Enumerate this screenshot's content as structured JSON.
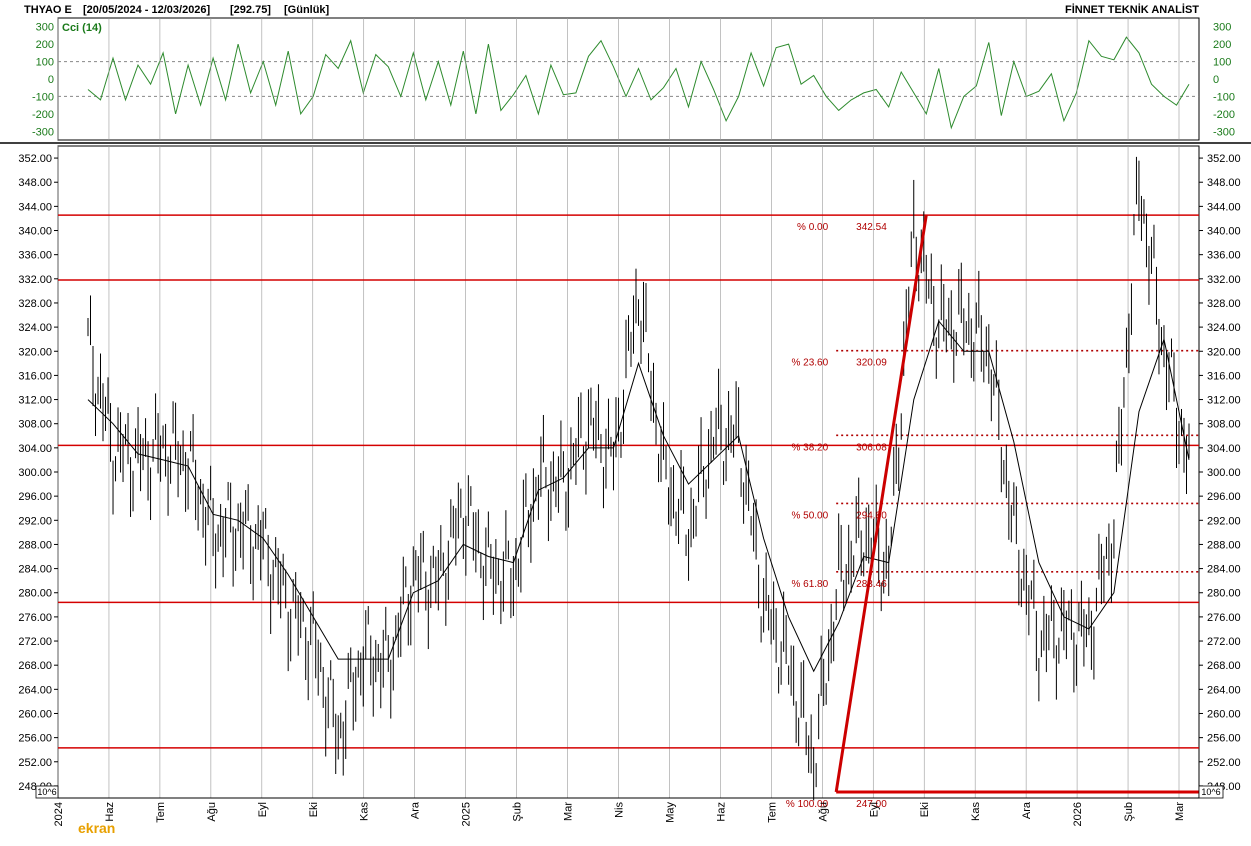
{
  "header": {
    "symbol": "THYAO E",
    "date_range": "[20/05/2024 - 12/03/2026]",
    "last_price": "[292.75]",
    "period": "[Günlük]",
    "vendor": "FİNNET TEKNİK ANALİST"
  },
  "scale_tag": "10^6",
  "watermark": "ekran",
  "colors": {
    "price": "#000000",
    "cci": "#2e8b2e",
    "levels": "#d40000",
    "fib_text": "#b00000",
    "grid": "#999999"
  },
  "chart_data": [
    {
      "type": "line",
      "name": "cci",
      "label": "Cci (14)",
      "ylim": [
        -350,
        350
      ],
      "ticks": [
        300,
        200,
        100,
        0,
        -100,
        -200,
        -300
      ],
      "dashed_levels": [
        100,
        -100
      ],
      "x": [
        0,
        5,
        10,
        15,
        20,
        25,
        30,
        35,
        40,
        45,
        50,
        55,
        60,
        65,
        70,
        75,
        80,
        85,
        90,
        95,
        100,
        105,
        110,
        115,
        120,
        125,
        130,
        135,
        140,
        145,
        150,
        155,
        160,
        165,
        170,
        175,
        180,
        185,
        190,
        195,
        200,
        205,
        210,
        215,
        220,
        225,
        230,
        235,
        240,
        245,
        250,
        255,
        260,
        265,
        270,
        275,
        280,
        285,
        290,
        295,
        300,
        305,
        310,
        315,
        320,
        325,
        330,
        335,
        340,
        345,
        350,
        355,
        360,
        365,
        370,
        375,
        380,
        385,
        390,
        395,
        400,
        405,
        410,
        415,
        420,
        425,
        430,
        435,
        440
      ],
      "values": [
        -60,
        -120,
        120,
        -120,
        80,
        -30,
        150,
        -200,
        80,
        -150,
        120,
        -120,
        200,
        -80,
        100,
        -150,
        160,
        -200,
        -100,
        140,
        60,
        220,
        -80,
        140,
        70,
        -100,
        150,
        -120,
        100,
        -150,
        160,
        -200,
        200,
        -180,
        -90,
        20,
        -200,
        80,
        -90,
        -80,
        130,
        220,
        70,
        -100,
        60,
        -120,
        -50,
        60,
        -160,
        100,
        -60,
        -240,
        -100,
        150,
        -40,
        180,
        200,
        -30,
        20,
        -100,
        -180,
        -120,
        -80,
        -60,
        -160,
        40,
        -80,
        -200,
        60,
        -280,
        -100,
        -40,
        210,
        -210,
        100,
        -100,
        -70,
        30,
        -240,
        -80,
        220,
        130,
        110,
        240,
        150,
        -30,
        -100,
        -150,
        -30
      ],
      "_note": "x = trading-bar index along the chart"
    },
    {
      "type": "line",
      "name": "price",
      "ylim": [
        246,
        354
      ],
      "yticks": [
        352,
        348,
        344,
        340,
        336,
        332,
        328,
        324,
        320,
        316,
        312,
        308,
        304,
        300,
        296,
        292,
        288,
        284,
        280,
        276,
        272,
        268,
        264,
        260,
        256,
        252,
        248
      ],
      "xlabels": [
        "2024",
        "Haz",
        "Tem",
        "Ağu",
        "Eyl",
        "Eki",
        "Kas",
        "Ara",
        "2025",
        "Şub",
        "Mar",
        "Nis",
        "May",
        "Haz",
        "Tem",
        "Ağu",
        "Eyl",
        "Eki",
        "Kas",
        "Ara",
        "2026",
        "Şub",
        "Mar"
      ],
      "x": [
        0,
        10,
        20,
        30,
        40,
        50,
        60,
        70,
        80,
        90,
        100,
        110,
        120,
        130,
        140,
        150,
        160,
        170,
        180,
        190,
        200,
        210,
        220,
        230,
        240,
        250,
        260,
        270,
        280,
        290,
        300,
        310,
        320,
        330,
        340,
        350,
        360,
        370,
        380,
        390,
        400,
        410,
        420,
        430,
        440
      ],
      "close": [
        321,
        304,
        302,
        304,
        302,
        290,
        291,
        288,
        278,
        272,
        256,
        270,
        268,
        283,
        282,
        294,
        284,
        283,
        299,
        298,
        308,
        302,
        330,
        300,
        290,
        306,
        306,
        278,
        268,
        252,
        282,
        290,
        284,
        340,
        324,
        325,
        320,
        290,
        272,
        274,
        273,
        291,
        348,
        320,
        301
      ],
      "ma": [
        312,
        308,
        303,
        302,
        301,
        293,
        292,
        289,
        283,
        276,
        269,
        269,
        269,
        280,
        282,
        288,
        286,
        285,
        297,
        299,
        304,
        304,
        318,
        306,
        298,
        302,
        306,
        289,
        276,
        267,
        275,
        286,
        285,
        312,
        325,
        320,
        320,
        305,
        285,
        276,
        274,
        280,
        310,
        322,
        302
      ],
      "levels": [
        342.54,
        331.8,
        304.4,
        278.4,
        254.3,
        247.0
      ],
      "fibonacci": [
        {
          "pct": "% 0.00",
          "price": "342.54"
        },
        {
          "pct": "% 23.60",
          "price": "320.09"
        },
        {
          "pct": "% 38.20",
          "price": "306.08"
        },
        {
          "pct": "% 50.00",
          "price": "294.80"
        },
        {
          "pct": "% 61.80",
          "price": "283.46"
        },
        {
          "pct": "% 100.00",
          "price": "247.00"
        }
      ],
      "trend_line": [
        {
          "x": 299,
          "y": 247.0
        },
        {
          "x": 335,
          "y": 342.54
        }
      ],
      "_note": "x = trading-bar index along the chart"
    }
  ]
}
